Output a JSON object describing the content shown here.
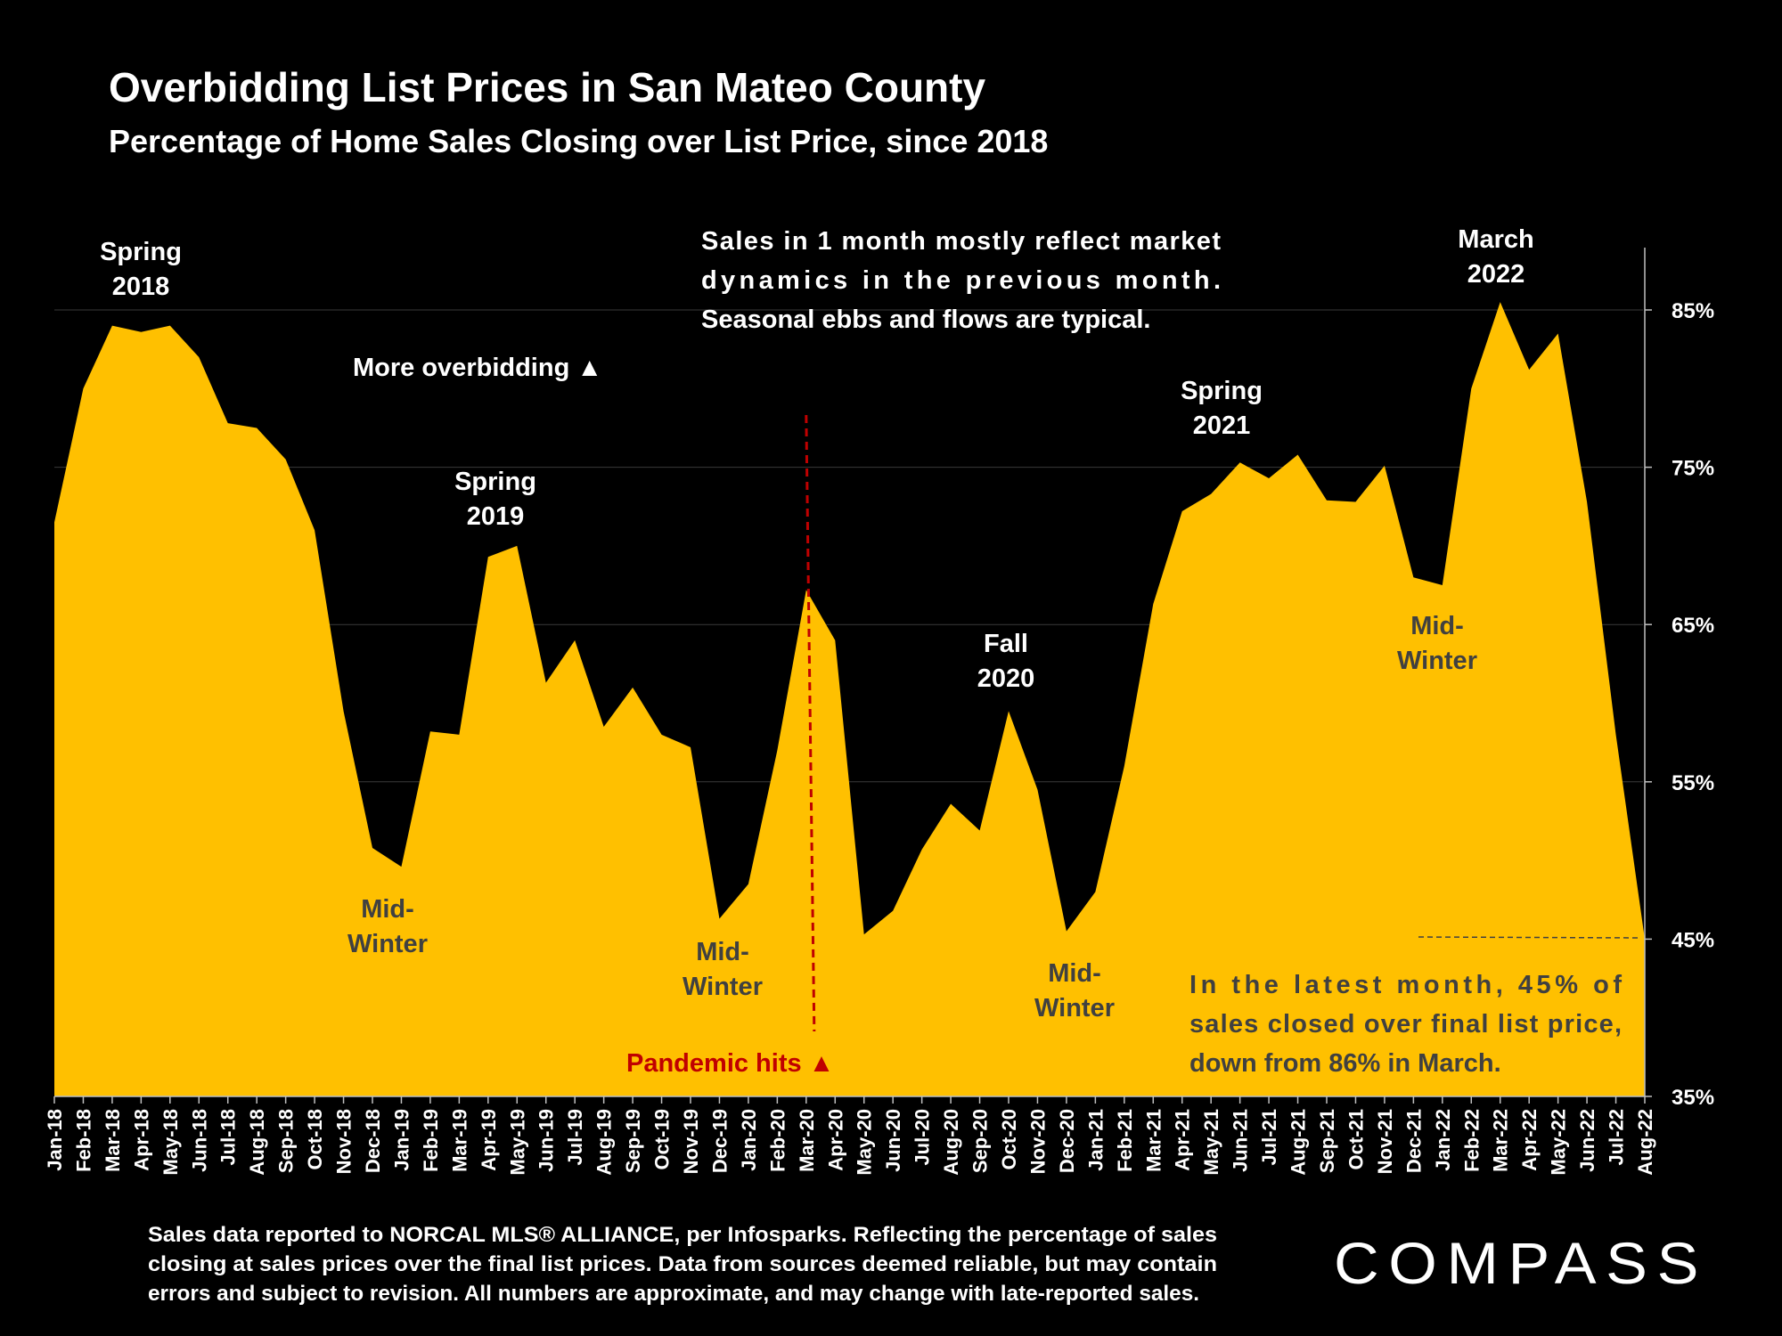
{
  "header": {
    "title": "Overbidding List Prices in San Mateo County",
    "subtitle": "Percentage of Home Sales Closing over List Price, since 2018"
  },
  "chart_data": {
    "type": "area",
    "title": "Overbidding List Prices in San Mateo County",
    "subtitle": "Percentage of Home Sales Closing over List Price, since 2018",
    "xlabel": "",
    "ylabel": "",
    "ylim": [
      35,
      85
    ],
    "yticks": [
      "85%",
      "75%",
      "65%",
      "55%",
      "45%",
      "35%"
    ],
    "ytick_values": [
      85,
      75,
      65,
      55,
      45,
      35
    ],
    "y_axis_position": "right",
    "grid": true,
    "legend": "none",
    "fill_color": "#FFC000",
    "categories": [
      "Jan-18",
      "Feb-18",
      "Mar-18",
      "Apr-18",
      "May-18",
      "Jun-18",
      "Jul-18",
      "Aug-18",
      "Sep-18",
      "Oct-18",
      "Nov-18",
      "Dec-18",
      "Jan-19",
      "Feb-19",
      "Mar-19",
      "Apr-19",
      "May-19",
      "Jun-19",
      "Jul-19",
      "Aug-19",
      "Sep-19",
      "Oct-19",
      "Nov-19",
      "Dec-19",
      "Jan-20",
      "Feb-20",
      "Mar-20",
      "Apr-20",
      "May-20",
      "Jun-20",
      "Jul-20",
      "Aug-20",
      "Sep-20",
      "Oct-20",
      "Nov-20",
      "Dec-20",
      "Jan-21",
      "Feb-21",
      "Mar-21",
      "Apr-21",
      "May-21",
      "Jun-21",
      "Jul-21",
      "Aug-21",
      "Sep-21",
      "Oct-21",
      "Nov-21",
      "Dec-21",
      "Jan-22",
      "Feb-22",
      "Mar-22",
      "Apr-22",
      "May-22",
      "Jun-22",
      "Jul-22",
      "Aug-22"
    ],
    "series": [
      {
        "values": [
          71.5,
          80,
          84,
          83.6,
          84,
          82,
          77.8,
          77.5,
          75.5,
          71,
          59.5,
          50.8,
          49.6,
          58.2,
          58,
          69.3,
          70,
          61.3,
          64,
          58.5,
          61,
          58,
          57.2,
          46.3,
          48.5,
          57,
          67.2,
          64,
          45.3,
          46.8,
          50.7,
          53.6,
          51.9,
          59.5,
          54.5,
          45.5,
          48,
          56,
          66.3,
          72.2,
          73.3,
          75.3,
          74.3,
          75.8,
          72.9,
          72.8,
          75.1,
          68,
          67.5,
          80,
          85.5,
          81.2,
          83.5,
          72.8,
          58,
          45
        ]
      }
    ],
    "annotations": [
      {
        "id": "spring-2018",
        "lines": [
          "Spring",
          "2018"
        ],
        "color": "#FFFFFF"
      },
      {
        "id": "more-overbidding",
        "lines": [
          "More overbidding ▲"
        ],
        "color": "#FFFFFF"
      },
      {
        "id": "spring-2019",
        "lines": [
          "Spring",
          "2019"
        ],
        "color": "#FFFFFF"
      },
      {
        "id": "market-dynamics",
        "lines": [
          "Sales in 1 month mostly reflect market",
          "dynamics in the previous month.",
          "Seasonal ebbs and flows are typical."
        ],
        "color": "#FFFFFF"
      },
      {
        "id": "march-2022",
        "lines": [
          "March",
          "2022"
        ],
        "color": "#FFFFFF"
      },
      {
        "id": "spring-2021",
        "lines": [
          "Spring",
          "2021"
        ],
        "color": "#FFFFFF"
      },
      {
        "id": "fall-2020",
        "lines": [
          "Fall",
          "2020"
        ],
        "color": "#FFFFFF"
      },
      {
        "id": "mid-winter-1",
        "lines": [
          "Mid-",
          "Winter"
        ],
        "color": "#404040"
      },
      {
        "id": "mid-winter-2",
        "lines": [
          "Mid-",
          "Winter"
        ],
        "color": "#404040"
      },
      {
        "id": "mid-winter-3",
        "lines": [
          "Mid-",
          "Winter"
        ],
        "color": "#404040"
      },
      {
        "id": "mid-winter-4",
        "lines": [
          "Mid-",
          "Winter"
        ],
        "color": "#404040"
      },
      {
        "id": "latest-month",
        "lines": [
          "In the latest month, 45% of",
          "sales closed over final list price,",
          "down from 86% in March."
        ],
        "color": "#404040"
      },
      {
        "id": "pandemic-hits",
        "lines": [
          "Pandemic hits ▲"
        ],
        "color": "#C00000"
      }
    ],
    "reference_lines": [
      {
        "type": "vertical",
        "at_category": "Mar-20",
        "color": "#C00000",
        "style": "dashed"
      },
      {
        "type": "horizontal",
        "value": 45.5,
        "color": "#404040",
        "style": "dashed"
      }
    ]
  },
  "footer": {
    "note_lines": [
      "Sales data reported to NORCAL MLS® ALLIANCE, per Infosparks. Reflecting the percentage of sales",
      "closing at sales prices over the final list prices. Data from sources deemed reliable, but may contain",
      "errors and subject to revision. All numbers are approximate, and may change with late-reported sales."
    ],
    "logo": "COMPASS"
  }
}
